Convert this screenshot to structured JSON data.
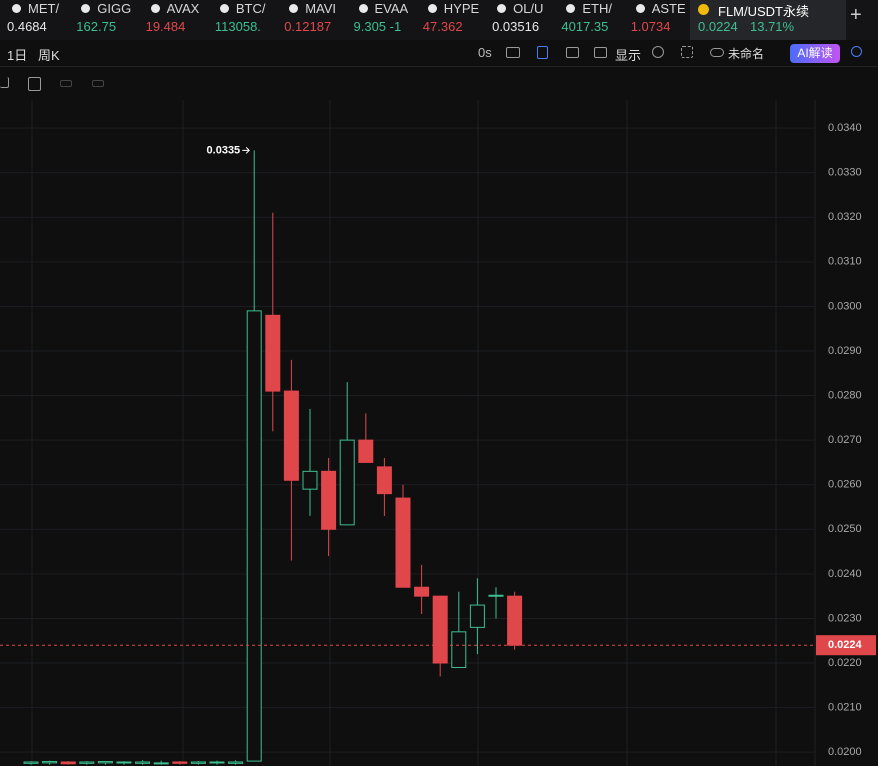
{
  "tickers": [
    {
      "name": "MET/",
      "price": "0.4684",
      "color": "#e8e8e8"
    },
    {
      "name": "GIGG",
      "price": "162.75",
      "color": "#3dbf8f"
    },
    {
      "name": "AVAX",
      "price": "19.484",
      "color": "#e0474b"
    },
    {
      "name": "BTC/",
      "price": "113058.",
      "color": "#3dbf8f"
    },
    {
      "name": "MAVI",
      "price": "0.12187",
      "color": "#e0474b"
    },
    {
      "name": "EVAA",
      "price": "9.305 -1",
      "color": "#3dbf8f"
    },
    {
      "name": "HYPE",
      "price": "47.362",
      "color": "#e0474b"
    },
    {
      "name": "OL/U",
      "price": "0.03516",
      "color": "#e8e8e8"
    },
    {
      "name": "ETH/",
      "price": "4017.35",
      "color": "#3dbf8f"
    },
    {
      "name": "ASTE",
      "price": "1.0734",
      "color": "#e0474b"
    }
  ],
  "active_tab": {
    "name": "FLM/USDT永续",
    "price": "0.0224",
    "change": "13.71%"
  },
  "toolbar": {
    "interval": "1日",
    "chart_type": "周K",
    "countdown": "0s",
    "display": "显示",
    "layout": "未命名",
    "ai": "AI解读"
  },
  "chart_data": {
    "type": "candlestick",
    "up_color": "#3dbf8f",
    "down_color": "#e0474b",
    "ylim": [
      0.01969,
      0.03463
    ],
    "yticks": [
      {
        "value": 0.02,
        "label": "0.0200"
      },
      {
        "value": 0.021,
        "label": "0.0210"
      },
      {
        "value": 0.022,
        "label": "0.0220"
      },
      {
        "value": 0.023,
        "label": "0.0230"
      },
      {
        "value": 0.024,
        "label": "0.0240"
      },
      {
        "value": 0.025,
        "label": "0.0250"
      },
      {
        "value": 0.026,
        "label": "0.0260"
      },
      {
        "value": 0.027,
        "label": "0.0270"
      },
      {
        "value": 0.028,
        "label": "0.0280"
      },
      {
        "value": 0.029,
        "label": "0.0290"
      },
      {
        "value": 0.03,
        "label": "0.0300"
      },
      {
        "value": 0.031,
        "label": "0.0310"
      },
      {
        "value": 0.032,
        "label": "0.0320"
      },
      {
        "value": 0.033,
        "label": "0.0330"
      },
      {
        "value": 0.034,
        "label": "0.0340"
      }
    ],
    "grid": true,
    "open": [
      0.01975,
      0.01976,
      0.01978,
      0.01975,
      0.01976,
      0.01976,
      0.01975,
      0.01974,
      0.01978,
      0.01975,
      0.01976,
      0.01975,
      0.0198,
      0.0298,
      0.0281,
      0.0259,
      0.0263,
      0.0251,
      0.027,
      0.0264,
      0.0257,
      0.0237,
      0.0235,
      0.0219,
      0.0228,
      0.0235,
      0.0235
    ],
    "high": [
      0.0198,
      0.01981,
      0.0198,
      0.0198,
      0.0198,
      0.0198,
      0.01982,
      0.01981,
      0.0198,
      0.0198,
      0.01981,
      0.01982,
      0.0335,
      0.0321,
      0.0288,
      0.0277,
      0.0266,
      0.0283,
      0.0276,
      0.0266,
      0.026,
      0.0242,
      0.0235,
      0.0236,
      0.0239,
      0.0237,
      0.0236
    ],
    "low": [
      0.01972,
      0.01972,
      0.01972,
      0.01972,
      0.01972,
      0.01972,
      0.01972,
      0.01972,
      0.01972,
      0.01972,
      0.01972,
      0.01972,
      0.0198,
      0.0272,
      0.0243,
      0.0253,
      0.0244,
      0.0251,
      0.0265,
      0.0253,
      0.0237,
      0.0231,
      0.0217,
      0.0219,
      0.0222,
      0.023,
      0.0223
    ],
    "close": [
      0.01978,
      0.01979,
      0.01974,
      0.01978,
      0.01979,
      0.01978,
      0.01978,
      0.01976,
      0.01975,
      0.01978,
      0.01978,
      0.01978,
      0.0299,
      0.0281,
      0.0261,
      0.0263,
      0.025,
      0.027,
      0.0265,
      0.0258,
      0.0237,
      0.0235,
      0.022,
      0.0227,
      0.0233,
      0.02352,
      0.0224
    ],
    "max_marker": {
      "value": 0.0335,
      "label": "0.0335"
    },
    "current_price": {
      "value": 0.0224,
      "label": "0.0224"
    }
  }
}
